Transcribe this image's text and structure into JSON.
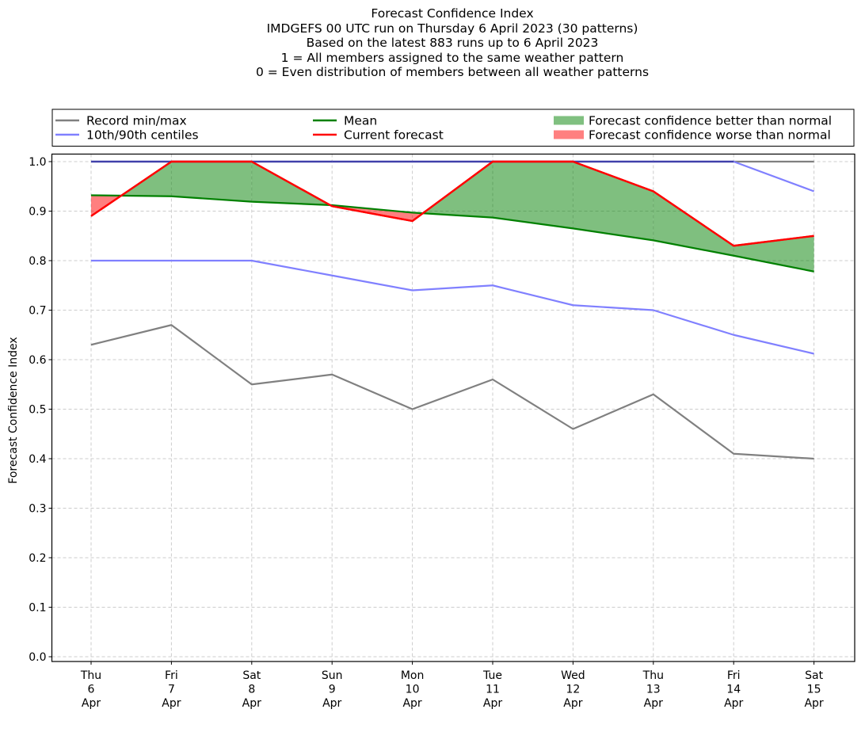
{
  "chart_data": {
    "type": "line",
    "title_lines": [
      "Forecast Confidence Index",
      "IMDGEFS 00 UTC run on Thursday 6 April 2023 (30 patterns)",
      "Based on the latest 883 runs up to 6 April 2023",
      "1 = All members assigned to the same weather pattern",
      "0 = Even distribution of members between all weather patterns"
    ],
    "xlabel": "",
    "ylabel": "Forecast Confidence Index",
    "ylim": [
      -0.01,
      1.01
    ],
    "yticks": [
      "0.0",
      "0.1",
      "0.2",
      "0.3",
      "0.4",
      "0.5",
      "0.6",
      "0.7",
      "0.8",
      "0.9",
      "1.0"
    ],
    "grid": true,
    "legend_placement": "top, above plot (3 columns)",
    "categories": [
      [
        "Thu",
        "6",
        "Apr"
      ],
      [
        "Fri",
        "7",
        "Apr"
      ],
      [
        "Sat",
        "8",
        "Apr"
      ],
      [
        "Sun",
        "9",
        "Apr"
      ],
      [
        "Mon",
        "10",
        "Apr"
      ],
      [
        "Tue",
        "11",
        "Apr"
      ],
      [
        "Wed",
        "12",
        "Apr"
      ],
      [
        "Thu",
        "13",
        "Apr"
      ],
      [
        "Fri",
        "14",
        "Apr"
      ],
      [
        "Sat",
        "15",
        "Apr"
      ]
    ],
    "series": [
      {
        "name": "Record min/max",
        "part": "max",
        "color": "#808080",
        "values": [
          1.0,
          1.0,
          1.0,
          1.0,
          1.0,
          1.0,
          1.0,
          1.0,
          1.0,
          1.0
        ]
      },
      {
        "name": "Record min/max",
        "part": "min",
        "color": "#808080",
        "values": [
          0.63,
          0.67,
          0.55,
          0.57,
          0.5,
          0.56,
          0.46,
          0.53,
          0.41,
          0.4
        ]
      },
      {
        "name": "10th/90th centiles",
        "part": "90th",
        "color": "#8080ff",
        "values": [
          1.0,
          1.0,
          1.0,
          1.0,
          1.0,
          1.0,
          1.0,
          1.0,
          1.0,
          0.94
        ]
      },
      {
        "name": "10th/90th centiles",
        "part": "10th",
        "color": "#8080ff",
        "values": [
          0.8,
          0.8,
          0.8,
          0.77,
          0.74,
          0.75,
          0.71,
          0.7,
          0.65,
          0.612
        ]
      },
      {
        "name": "Mean",
        "color": "#008000",
        "values": [
          0.932,
          0.93,
          0.919,
          0.912,
          0.897,
          0.887,
          0.865,
          0.841,
          0.81,
          0.778
        ]
      },
      {
        "name": "Current forecast",
        "color": "#ff0000",
        "values": [
          0.89,
          1.0,
          1.0,
          0.91,
          0.88,
          1.0,
          1.0,
          0.94,
          0.83,
          0.85
        ]
      }
    ],
    "fills": [
      {
        "name": "Forecast confidence better than normal",
        "color": "#008000",
        "opacity": 0.5
      },
      {
        "name": "Forecast confidence worse than normal",
        "color": "#ff0000",
        "opacity": 0.5
      }
    ],
    "legend": [
      {
        "label": "Record min/max",
        "type": "line",
        "color": "#808080"
      },
      {
        "label": "10th/90th centiles",
        "type": "line",
        "color": "#8080ff"
      },
      {
        "label": "Mean",
        "type": "line",
        "color": "#008000"
      },
      {
        "label": "Current forecast",
        "type": "line",
        "color": "#ff0000"
      },
      {
        "label": "Forecast confidence better than normal",
        "type": "patch",
        "color": "#80c080"
      },
      {
        "label": "Forecast confidence worse than normal",
        "type": "patch",
        "color": "#ff8080"
      }
    ]
  }
}
